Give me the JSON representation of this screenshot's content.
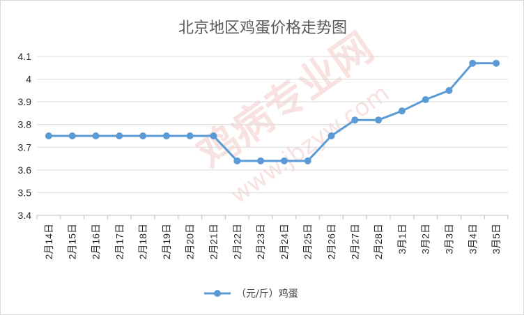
{
  "watermark": {
    "main": "鸡病专业网",
    "url": "www.jbzyw.com"
  },
  "chart_data": {
    "type": "line",
    "title": "北京地区鸡蛋价格走势图",
    "categories": [
      "2月14日",
      "2月15日",
      "2月16日",
      "2月17日",
      "2月18日",
      "2月19日",
      "2月20日",
      "2月21日",
      "2月22日",
      "2月23日",
      "2月24日",
      "2月25日",
      "2月26日",
      "2月27日",
      "2月28日",
      "3月1日",
      "3月2日",
      "3月3日",
      "3月4日",
      "3月5日"
    ],
    "series": [
      {
        "name": "（元/斤）鸡蛋",
        "values": [
          3.75,
          3.75,
          3.75,
          3.75,
          3.75,
          3.75,
          3.75,
          3.75,
          3.64,
          3.64,
          3.64,
          3.64,
          3.75,
          3.82,
          3.82,
          3.86,
          3.91,
          3.95,
          4.07,
          4.07
        ],
        "color": "#5b9bd5"
      }
    ],
    "ylim": [
      3.4,
      4.1
    ],
    "yticks": [
      "3.4",
      "3.5",
      "3.6",
      "3.7",
      "3.8",
      "3.9",
      "4",
      "4.1"
    ],
    "xlabel": "",
    "ylabel": "",
    "grid": true,
    "legend_position": "bottom"
  }
}
